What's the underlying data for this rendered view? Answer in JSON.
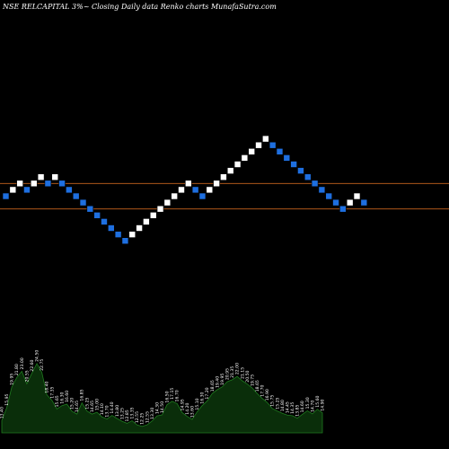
{
  "header": {
    "symbol": "NSE RELCAPITAL",
    "box_size": "3%",
    "settings": "Closing Daily data",
    "chart_kind": "Renko",
    "source": "charts MunafaSutra.com"
  },
  "colors": {
    "background": "#000000",
    "up_brick": "#ffffff",
    "down_brick": "#1e6fe0",
    "level_line": "#c8641e",
    "volume_fill": "#0a2e0a",
    "volume_line": "#1f7a1f"
  },
  "chart_data": {
    "type": "renko",
    "title": "NSE RELCAPITAL 3%~ Closing Daily data Renko charts MunafaSutra.com",
    "bricks": [
      {
        "dir": "down",
        "level": 0
      },
      {
        "dir": "up",
        "level": 1
      },
      {
        "dir": "up",
        "level": 2
      },
      {
        "dir": "down",
        "level": 1
      },
      {
        "dir": "up",
        "level": 2
      },
      {
        "dir": "up",
        "level": 3
      },
      {
        "dir": "down",
        "level": 2
      },
      {
        "dir": "up",
        "level": 3
      },
      {
        "dir": "down",
        "level": 2
      },
      {
        "dir": "down",
        "level": 1
      },
      {
        "dir": "down",
        "level": 0
      },
      {
        "dir": "down",
        "level": -1
      },
      {
        "dir": "down",
        "level": -2
      },
      {
        "dir": "down",
        "level": -3
      },
      {
        "dir": "down",
        "level": -4
      },
      {
        "dir": "down",
        "level": -5
      },
      {
        "dir": "down",
        "level": -6
      },
      {
        "dir": "down",
        "level": -7
      },
      {
        "dir": "up",
        "level": -6
      },
      {
        "dir": "up",
        "level": -5
      },
      {
        "dir": "up",
        "level": -4
      },
      {
        "dir": "up",
        "level": -3
      },
      {
        "dir": "up",
        "level": -2
      },
      {
        "dir": "up",
        "level": -1
      },
      {
        "dir": "up",
        "level": 0
      },
      {
        "dir": "up",
        "level": 1
      },
      {
        "dir": "up",
        "level": 2
      },
      {
        "dir": "down",
        "level": 1
      },
      {
        "dir": "down",
        "level": 0
      },
      {
        "dir": "up",
        "level": 1
      },
      {
        "dir": "up",
        "level": 2
      },
      {
        "dir": "up",
        "level": 3
      },
      {
        "dir": "up",
        "level": 4
      },
      {
        "dir": "up",
        "level": 5
      },
      {
        "dir": "up",
        "level": 6
      },
      {
        "dir": "up",
        "level": 7
      },
      {
        "dir": "up",
        "level": 8
      },
      {
        "dir": "up",
        "level": 9
      },
      {
        "dir": "down",
        "level": 8
      },
      {
        "dir": "down",
        "level": 7
      },
      {
        "dir": "down",
        "level": 6
      },
      {
        "dir": "down",
        "level": 5
      },
      {
        "dir": "down",
        "level": 4
      },
      {
        "dir": "down",
        "level": 3
      },
      {
        "dir": "down",
        "level": 2
      },
      {
        "dir": "down",
        "level": 1
      },
      {
        "dir": "down",
        "level": 0
      },
      {
        "dir": "down",
        "level": -1
      },
      {
        "dir": "down",
        "level": -2
      },
      {
        "dir": "up",
        "level": -1
      },
      {
        "dir": "up",
        "level": 0
      },
      {
        "dir": "down",
        "level": -1
      }
    ],
    "reference_levels": [
      2,
      -2
    ],
    "volume": {
      "labels": [
        "13.40",
        "15.95",
        "19.95",
        "21.80",
        "23.00",
        "20.55",
        "22.60",
        "24.50",
        "22.75",
        "18.40",
        "17.35",
        "15.65",
        "16.30",
        "16.60",
        "15.20",
        "14.65",
        "16.85",
        "15.25",
        "14.65",
        "15.00",
        "14.10",
        "13.70",
        "14.40",
        "13.80",
        "13.25",
        "12.85",
        "13.35",
        "12.55",
        "12.25",
        "12.55",
        "13.30",
        "14.30",
        "14.50",
        "16.50",
        "17.15",
        "16.70",
        "14.95",
        "14.20",
        "13.60",
        "15.10",
        "16.30",
        "17.20",
        "18.65",
        "19.40",
        "19.95",
        "20.95",
        "21.35",
        "22.00",
        "21.15",
        "20.50",
        "19.75",
        "18.65",
        "17.70",
        "16.90",
        "15.75",
        "15.25",
        "14.80",
        "14.45",
        "14.35",
        "13.85",
        "14.60",
        "15.30",
        "14.70",
        "15.60",
        "14.90"
      ],
      "values": [
        13.4,
        15.95,
        19.95,
        21.8,
        23.0,
        20.55,
        22.6,
        24.5,
        22.75,
        18.4,
        17.35,
        15.65,
        16.3,
        16.6,
        15.2,
        14.65,
        16.85,
        15.25,
        14.65,
        15.0,
        14.1,
        13.7,
        14.4,
        13.8,
        13.25,
        12.85,
        13.35,
        12.55,
        12.25,
        12.55,
        13.3,
        14.3,
        14.5,
        16.5,
        17.15,
        16.7,
        14.95,
        14.2,
        13.6,
        15.1,
        16.3,
        17.2,
        18.65,
        19.4,
        19.95,
        20.95,
        21.35,
        22.0,
        21.15,
        20.5,
        19.75,
        18.65,
        17.7,
        16.9,
        15.75,
        15.25,
        14.8,
        14.45,
        14.35,
        13.85,
        14.6,
        15.3,
        14.7,
        15.6,
        14.9
      ],
      "ylim": [
        11,
        25
      ]
    }
  }
}
